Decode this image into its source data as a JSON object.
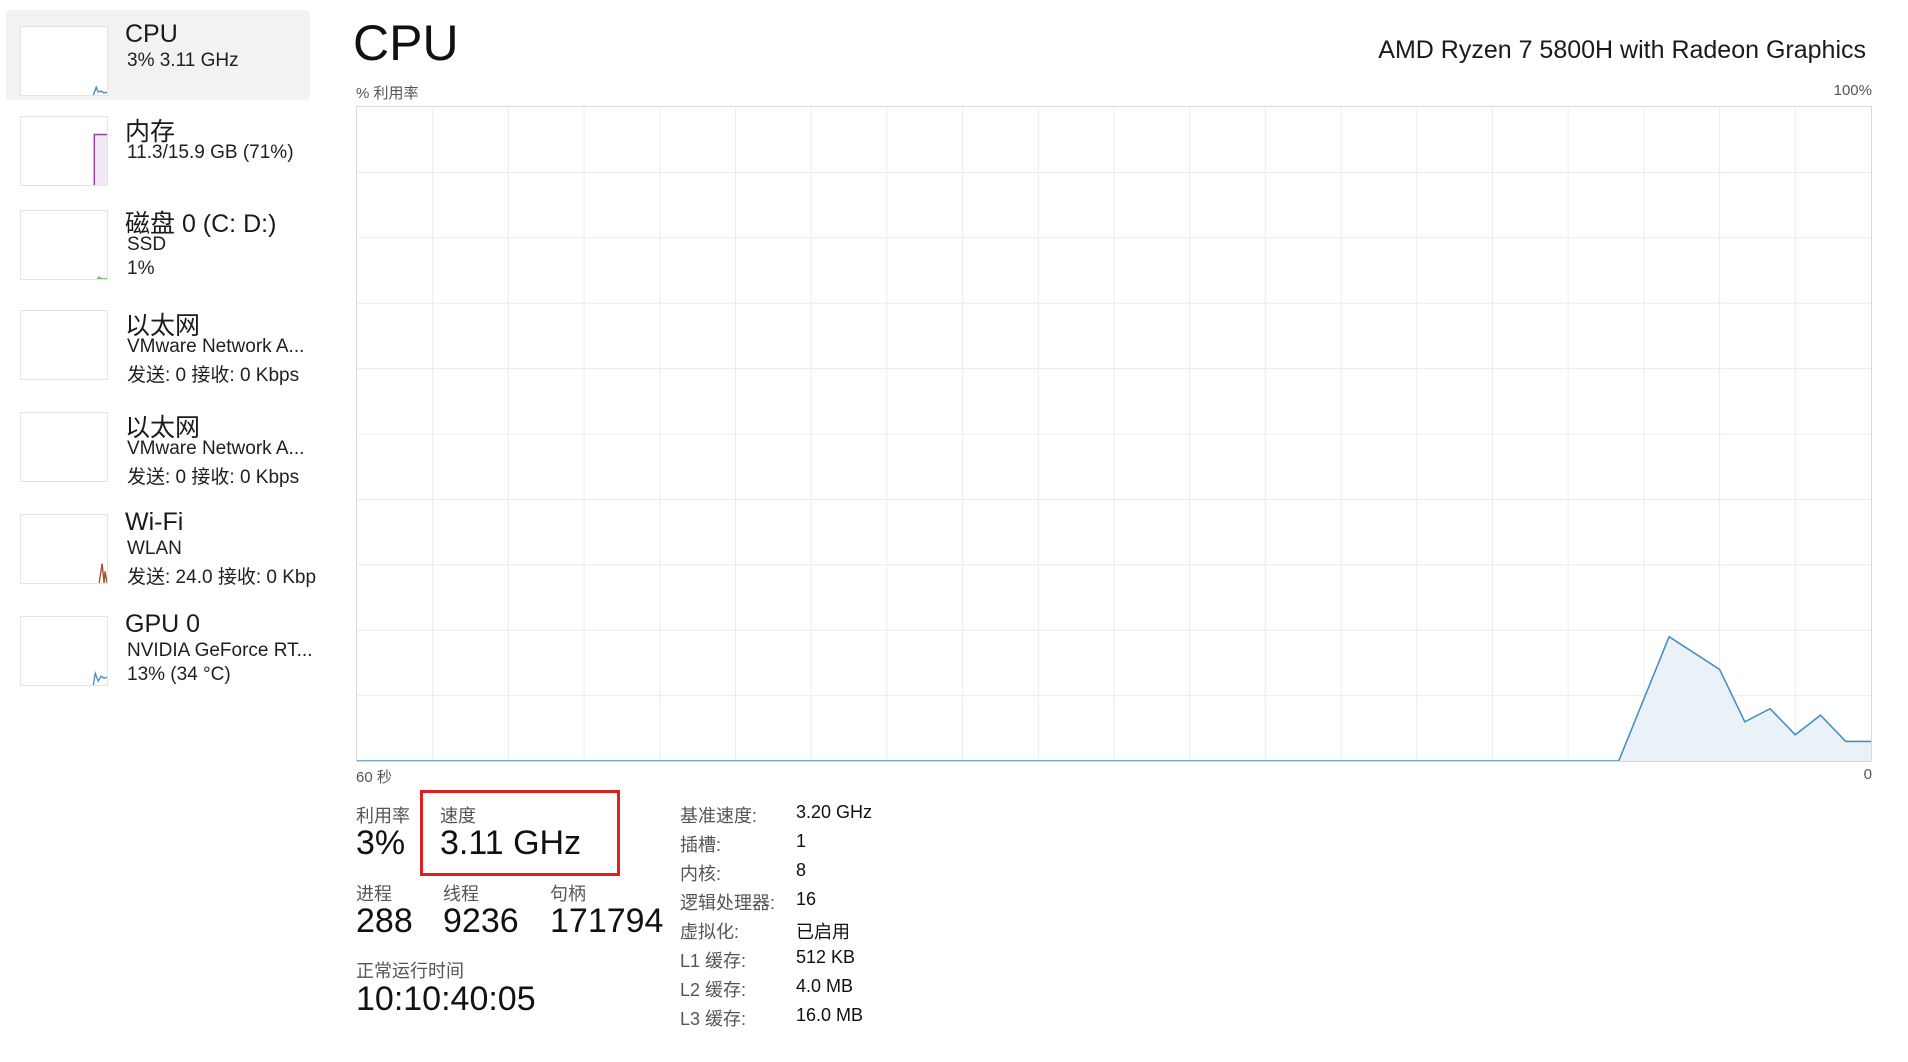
{
  "sidebar": {
    "items": [
      {
        "title": "CPU",
        "line1": "3%  3.11 GHz",
        "line2": "",
        "color": "#4a8fc0"
      },
      {
        "title": "内存",
        "line1": "11.3/15.9 GB (71%)",
        "line2": "",
        "color": "#9b3fa8"
      },
      {
        "title": "磁盘 0 (C: D:)",
        "line1": "SSD",
        "line2": "1%",
        "color": "#4a9a3a"
      },
      {
        "title": "以太网",
        "line1": "VMware Network A...",
        "line2": "发送: 0 接收: 0 Kbps",
        "color": "#a0522d"
      },
      {
        "title": "以太网",
        "line1": "VMware Network A...",
        "line2": "发送: 0 接收: 0 Kbps",
        "color": "#a0522d"
      },
      {
        "title": "Wi-Fi",
        "line1": "WLAN",
        "line2": "发送: 24.0 接收: 0 Kbp",
        "color": "#a0522d"
      },
      {
        "title": "GPU 0",
        "line1": "NVIDIA GeForce RT...",
        "line2": "13%  (34 °C)",
        "color": "#4a8fc0"
      }
    ]
  },
  "header": {
    "title": "CPU",
    "model": "AMD Ryzen 7 5800H with Radeon Graphics"
  },
  "graph": {
    "y_label": "% 利用率",
    "y_max_label": "100%",
    "x_left_label": "60 秒",
    "x_right_label": "0",
    "line_color": "#4a8fc0",
    "fill_color": "#eaf2f8",
    "grid_color": "#ececec"
  },
  "chart_data": {
    "type": "area",
    "ylabel": "% 利用率",
    "ylim": [
      0,
      100
    ],
    "xlim": [
      60,
      0
    ],
    "x": [
      60,
      10,
      8,
      6,
      5,
      4,
      3,
      2,
      1,
      0
    ],
    "values": [
      0,
      0,
      19,
      14,
      6,
      8,
      4,
      7,
      3,
      3
    ]
  },
  "stats": {
    "utilization": {
      "label": "利用率",
      "value": "3%"
    },
    "speed": {
      "label": "速度",
      "value": "3.11 GHz"
    },
    "processes": {
      "label": "进程",
      "value": "288"
    },
    "threads": {
      "label": "线程",
      "value": "9236"
    },
    "handles": {
      "label": "句柄",
      "value": "171794"
    },
    "uptime": {
      "label": "正常运行时间",
      "value": "10:10:40:05"
    }
  },
  "specs": [
    {
      "label": "基准速度:",
      "value": "3.20 GHz"
    },
    {
      "label": "插槽:",
      "value": "1"
    },
    {
      "label": "内核:",
      "value": "8"
    },
    {
      "label": "逻辑处理器:",
      "value": "16"
    },
    {
      "label": "虚拟化:",
      "value": "已启用"
    },
    {
      "label": "L1 缓存:",
      "value": "512 KB"
    },
    {
      "label": "L2 缓存:",
      "value": "4.0 MB"
    },
    {
      "label": "L3 缓存:",
      "value": "16.0 MB"
    }
  ]
}
